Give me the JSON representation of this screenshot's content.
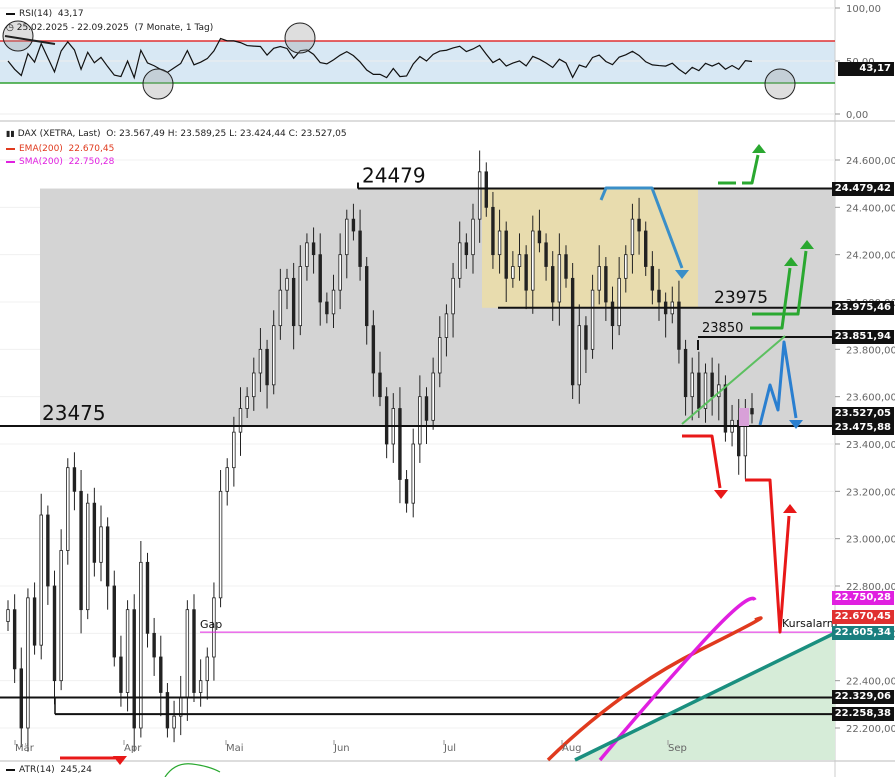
{
  "rsi": {
    "label": "RSI(14)",
    "value_text": "43,17",
    "period_text": "25.02.2025 - 22.09.2025",
    "range_text": "(7 Monate, 1 Tag)",
    "ticks": [
      "100,00",
      "50,00",
      "0,00"
    ],
    "badge": "43,17"
  },
  "legend": {
    "main": "DAX (XETRA, Last)",
    "ohlc": "O: 23.567,49   H: 23.589,25   L: 23.424,44   C: 23.527,05",
    "ema_label": "EMA(200)",
    "ema_value": "22.670,45",
    "sma_label": "SMA(200)",
    "sma_value": "22.750,28"
  },
  "price_ticks": [
    "24.600,00",
    "24.400,00",
    "24.200,00",
    "24.000,00",
    "23.800,00",
    "23.600,00",
    "23.400,00",
    "23.200,00",
    "23.000,00",
    "22.800,00",
    "22.600,00",
    "22.400,00",
    "22.200,00"
  ],
  "months": [
    "Mär",
    "Apr",
    "Mai",
    "Jun",
    "Jul",
    "Aug",
    "Sep"
  ],
  "annotations": {
    "level_24479": "24479",
    "level_23975": "23975",
    "level_23850": "23850",
    "level_23475": "23475",
    "gap": "Gap",
    "kursalarm": "Kursalarm"
  },
  "price_tags": [
    {
      "text": "24.479,42",
      "color": "#111111"
    },
    {
      "text": "23.975,46",
      "color": "#111111"
    },
    {
      "text": "23.851,94",
      "color": "#111111"
    },
    {
      "text": "23.527,05",
      "color": "#111111"
    },
    {
      "text": "23.475,88",
      "color": "#111111"
    },
    {
      "text": "22.750,28",
      "color": "#e020e0"
    },
    {
      "text": "22.670,45",
      "color": "#e03030"
    },
    {
      "text": "22.605,34",
      "color": "#1a7f7f"
    },
    {
      "text": "22.329,06",
      "color": "#111111"
    },
    {
      "text": "22.258,38",
      "color": "#111111"
    }
  ],
  "atr": {
    "label": "ATR(14)",
    "value": "245,24"
  },
  "colors": {
    "ema": "#e03a1e",
    "sma": "#e020e0",
    "trend": "#1a8f7f",
    "rsi_high": "#e03030",
    "rsi_low": "#30a030"
  },
  "chart_data": {
    "type": "candlestick",
    "title": "DAX (XETRA, Last)",
    "ylim": [
      22150,
      24700
    ],
    "ohlc_last": {
      "open": 23567.49,
      "high": 23589.25,
      "low": 23424.44,
      "close": 23527.05
    },
    "horizontal_levels": [
      24479.42,
      23975.46,
      23851.94,
      23475.88,
      22329.06,
      22258.38
    ],
    "ema200_last": 22670.45,
    "sma200_last": 22750.28,
    "kursalarm": 22605.34,
    "rsi_last": 43.17,
    "atr_last": 245.24,
    "closes": [
      22700,
      22450,
      22200,
      22750,
      22550,
      23100,
      22800,
      22400,
      22950,
      23300,
      23200,
      22700,
      23150,
      22900,
      23050,
      22800,
      22500,
      22350,
      22700,
      22200,
      22900,
      22600,
      22500,
      22350,
      22200,
      22250,
      22330,
      22700,
      22350,
      22400,
      22500,
      22750,
      23200,
      23300,
      23450,
      23550,
      23600,
      23700,
      23800,
      23650,
      23900,
      24050,
      24100,
      23900,
      24150,
      24250,
      24200,
      24000,
      23950,
      24050,
      24200,
      24350,
      24300,
      24150,
      23900,
      23700,
      23600,
      23400,
      23550,
      23250,
      23150,
      23400,
      23600,
      23500,
      23700,
      23850,
      23950,
      24100,
      24250,
      24200,
      24350,
      24550,
      24400,
      24200,
      24300,
      24100,
      24150,
      24200,
      24050,
      24300,
      24250,
      24150,
      24000,
      24200,
      24100,
      23650,
      23900,
      23800,
      24050,
      24150,
      24000,
      23900,
      24100,
      24200,
      24350,
      24300,
      24150,
      24050,
      24000,
      23950,
      24000,
      23800,
      23600,
      23700,
      23550,
      23700,
      23600,
      23650,
      23450,
      23500,
      23350,
      23550,
      23527
    ]
  }
}
